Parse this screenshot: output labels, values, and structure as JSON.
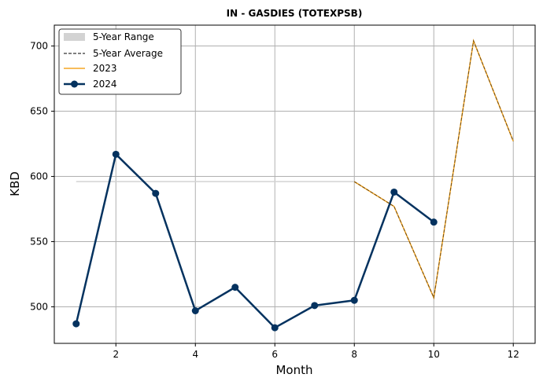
{
  "chart_data": {
    "type": "line",
    "title": "IN - GASDIES (TOTEXPSB)",
    "xlabel": "Month",
    "ylabel": "KBD",
    "xlim": [
      0.45,
      12.55
    ],
    "ylim": [
      472,
      716
    ],
    "xticks": [
      2,
      4,
      6,
      8,
      10,
      12
    ],
    "yticks": [
      500,
      550,
      600,
      650,
      700
    ],
    "grid": true,
    "legend_position": "top-left",
    "colors": {
      "range": "#d3d3d3",
      "average": "#000000",
      "y2023": "#f5a623",
      "y2024": "#04325f"
    },
    "legend": [
      "5-Year Range",
      "5-Year Average",
      "2023",
      "2024"
    ],
    "series": [
      {
        "name": "5-Year Range",
        "x": [
          1,
          2,
          3,
          4,
          5,
          6,
          7,
          8
        ],
        "values": [
          596,
          596,
          596,
          596,
          596,
          596,
          596,
          596
        ]
      },
      {
        "name": "5-Year Average",
        "x": [
          8,
          9,
          10,
          11,
          12
        ],
        "values": [
          596,
          577,
          507,
          704,
          627
        ]
      },
      {
        "name": "2023",
        "x": [
          8,
          9,
          10,
          11,
          12
        ],
        "values": [
          596,
          577,
          507,
          704,
          627
        ]
      },
      {
        "name": "2024",
        "x": [
          1,
          2,
          3,
          4,
          5,
          6,
          7,
          8,
          9,
          10
        ],
        "values": [
          487,
          617,
          587,
          497,
          515,
          484,
          501,
          505,
          588,
          565
        ]
      }
    ]
  }
}
